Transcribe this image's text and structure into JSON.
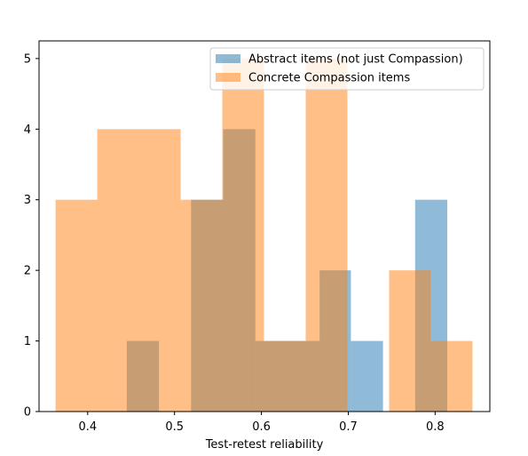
{
  "chart_data": {
    "type": "histogram",
    "title": "",
    "xlabel": "Test-retest reliability",
    "ylabel": "",
    "xlim": [
      0.344,
      0.863
    ],
    "ylim": [
      0,
      5.25
    ],
    "xticks": [
      0.4,
      0.5,
      0.6,
      0.7,
      0.8
    ],
    "xtick_labels": [
      "0.4",
      "0.5",
      "0.6",
      "0.7",
      "0.8"
    ],
    "yticks": [
      0,
      1,
      2,
      3,
      4,
      5
    ],
    "ytick_labels": [
      "0",
      "1",
      "2",
      "3",
      "4",
      "5"
    ],
    "grid": false,
    "legend_position": "upper right",
    "overlap_alpha": 0.5,
    "series": [
      {
        "name": "Abstract items (not just Compassion)",
        "color": "#1f77b4",
        "bins": [
          {
            "x0": 0.445,
            "x1": 0.482,
            "count": 1
          },
          {
            "x0": 0.519,
            "x1": 0.556,
            "count": 3
          },
          {
            "x0": 0.556,
            "x1": 0.593,
            "count": 4
          },
          {
            "x0": 0.593,
            "x1": 0.63,
            "count": 1
          },
          {
            "x0": 0.63,
            "x1": 0.667,
            "count": 1
          },
          {
            "x0": 0.667,
            "x1": 0.703,
            "count": 2
          },
          {
            "x0": 0.703,
            "x1": 0.74,
            "count": 1
          },
          {
            "x0": 0.777,
            "x1": 0.814,
            "count": 3
          }
        ]
      },
      {
        "name": "Concrete Compassion items",
        "color": "#ff7f0e",
        "bins": [
          {
            "x0": 0.363,
            "x1": 0.411,
            "count": 3
          },
          {
            "x0": 0.411,
            "x1": 0.459,
            "count": 4
          },
          {
            "x0": 0.459,
            "x1": 0.507,
            "count": 4
          },
          {
            "x0": 0.507,
            "x1": 0.555,
            "count": 3
          },
          {
            "x0": 0.555,
            "x1": 0.603,
            "count": 5
          },
          {
            "x0": 0.603,
            "x1": 0.651,
            "count": 1
          },
          {
            "x0": 0.651,
            "x1": 0.699,
            "count": 5
          },
          {
            "x0": 0.747,
            "x1": 0.795,
            "count": 2
          },
          {
            "x0": 0.795,
            "x1": 0.843,
            "count": 1
          }
        ]
      }
    ]
  }
}
